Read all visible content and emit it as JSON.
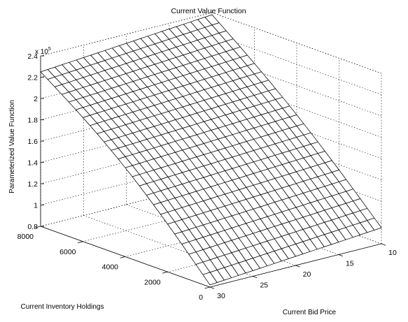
{
  "chart_data": {
    "type": "surface",
    "title": "Current Value Function",
    "xlabel": "Current Bid Price",
    "ylabel": "Current Inventory Holdings",
    "zlabel": "Parameterized Value Function",
    "z_multiplier_label": "x 10",
    "z_multiplier_exponent": "5",
    "xlim": [
      10,
      30
    ],
    "ylim": [
      0,
      8000
    ],
    "zlim": [
      0.8,
      2.4
    ],
    "x_ticks": [
      "10",
      "15",
      "20",
      "25",
      "30"
    ],
    "y_ticks": [
      "0",
      "2000",
      "4000",
      "6000",
      "8000"
    ],
    "z_ticks": [
      "0.8",
      "1",
      "1.2",
      "1.4",
      "1.6",
      "1.8",
      "2",
      "2.2",
      "2.4"
    ],
    "grid": true,
    "mesh_size": [
      25,
      25
    ],
    "corner_values": {
      "price_10_inv_0": 0.95,
      "price_30_inv_0": 0.82,
      "price_10_inv_8000": 2.38,
      "price_30_inv_8000": 2.25
    }
  }
}
